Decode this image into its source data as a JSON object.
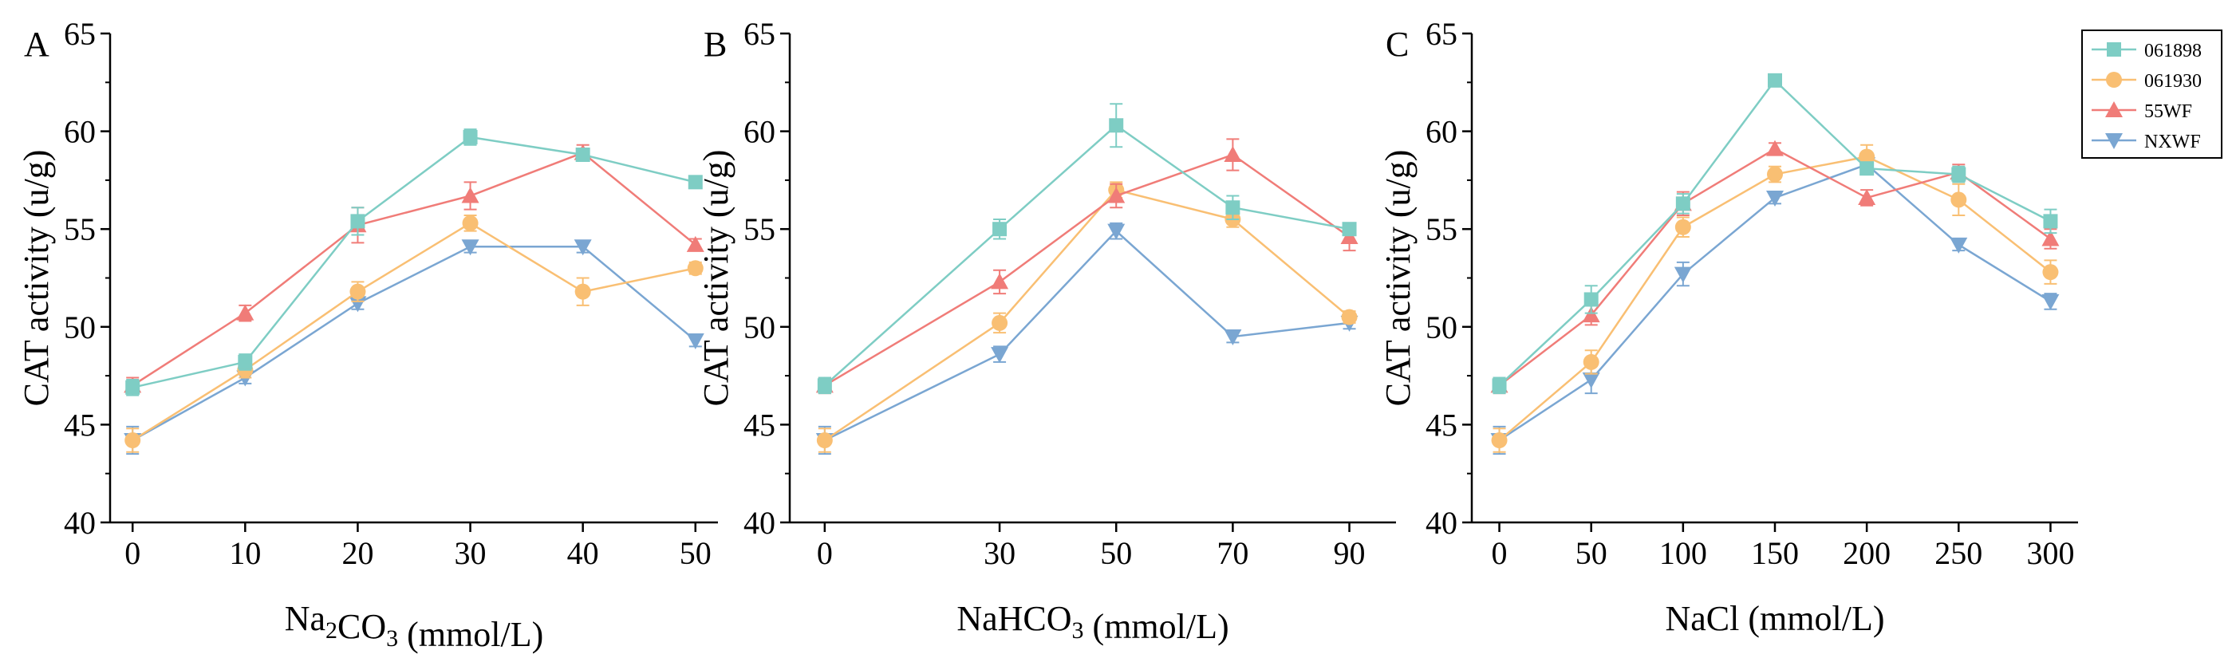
{
  "legend": [
    {
      "name": "061898",
      "color": "#7ecdc4",
      "marker": "square"
    },
    {
      "name": "061930",
      "color": "#f9bf73",
      "marker": "circle"
    },
    {
      "name": "55WF",
      "color": "#f07c78",
      "marker": "triangle-up"
    },
    {
      "name": "NXWF",
      "color": "#7aa6d2",
      "marker": "triangle-down"
    }
  ],
  "chart_data": [
    {
      "type": "line",
      "panel_label": "A",
      "ylabel": "CAT activity (u/g)",
      "xlabel": {
        "pre": "Na",
        "sub1": "2",
        "mid": "CO",
        "sub2": "3",
        "post": " (mmol/L)"
      },
      "x": [
        0,
        10,
        20,
        30,
        40,
        50
      ],
      "xlim": [
        -2,
        52
      ],
      "ylim": [
        40,
        65
      ],
      "yticks": [
        40,
        45,
        50,
        55,
        60,
        65
      ],
      "grid": false,
      "legend_position": "top-right",
      "series": [
        {
          "name": "061898",
          "values": [
            46.9,
            48.2,
            55.4,
            59.7,
            58.8,
            57.4
          ],
          "errors": [
            0.4,
            0.4,
            0.7,
            0.4,
            0.3,
            0.3
          ]
        },
        {
          "name": "061930",
          "values": [
            44.2,
            47.8,
            51.8,
            55.3,
            51.8,
            53.0
          ],
          "errors": [
            0.6,
            0.4,
            0.5,
            0.4,
            0.7,
            0.3
          ]
        },
        {
          "name": "55WF",
          "values": [
            47.0,
            50.7,
            55.2,
            56.7,
            58.9,
            54.2
          ],
          "errors": [
            0.4,
            0.4,
            0.9,
            0.7,
            0.4,
            0.3
          ]
        },
        {
          "name": "NXWF",
          "values": [
            44.2,
            47.4,
            51.2,
            54.1,
            54.1,
            49.3
          ],
          "errors": [
            0.7,
            0.3,
            0.3,
            0.3,
            0.3,
            0.3
          ]
        }
      ]
    },
    {
      "type": "line",
      "panel_label": "B",
      "ylabel": "CAT activity (u/g)",
      "xlabel": {
        "pre": "NaHCO",
        "sub1": "",
        "mid": "",
        "sub2": "3",
        "post": " (mmol/L)"
      },
      "x": [
        0,
        30,
        50,
        70,
        90
      ],
      "xlim": [
        -6,
        98
      ],
      "ylim": [
        40,
        65
      ],
      "yticks": [
        40,
        45,
        50,
        55,
        60,
        65
      ],
      "grid": false,
      "series": [
        {
          "name": "061898",
          "values": [
            47.0,
            55.0,
            60.3,
            56.1,
            55.0
          ],
          "errors": [
            0.4,
            0.5,
            1.1,
            0.6,
            0.3
          ]
        },
        {
          "name": "061930",
          "values": [
            44.2,
            50.2,
            57.0,
            55.5,
            50.5
          ],
          "errors": [
            0.6,
            0.5,
            0.4,
            0.4,
            0.3
          ]
        },
        {
          "name": "55WF",
          "values": [
            47.0,
            52.3,
            56.7,
            58.8,
            54.6
          ],
          "errors": [
            0.4,
            0.6,
            0.6,
            0.8,
            0.7
          ]
        },
        {
          "name": "NXWF",
          "values": [
            44.2,
            48.6,
            54.9,
            49.5,
            50.2
          ],
          "errors": [
            0.7,
            0.4,
            0.4,
            0.3,
            0.3
          ]
        }
      ]
    },
    {
      "type": "line",
      "panel_label": "C",
      "ylabel": "CAT activity (u/g)",
      "xlabel": {
        "pre": "NaCl",
        "sub1": "",
        "mid": "",
        "sub2": "",
        "post": " (mmol/L)"
      },
      "x": [
        0,
        50,
        100,
        150,
        200,
        250,
        300
      ],
      "xlim": [
        -15,
        315
      ],
      "ylim": [
        40,
        65
      ],
      "yticks": [
        40,
        45,
        50,
        55,
        60,
        65
      ],
      "grid": false,
      "series": [
        {
          "name": "061898",
          "values": [
            47.0,
            51.4,
            56.3,
            62.6,
            58.1,
            57.8,
            55.4
          ],
          "errors": [
            0.4,
            0.7,
            0.5,
            0.3,
            0.3,
            0.4,
            0.6
          ]
        },
        {
          "name": "061930",
          "values": [
            44.2,
            48.2,
            55.1,
            57.8,
            58.7,
            56.5,
            52.8
          ],
          "errors": [
            0.6,
            0.6,
            0.5,
            0.4,
            0.6,
            0.8,
            0.6
          ]
        },
        {
          "name": "55WF",
          "values": [
            47.0,
            50.6,
            56.3,
            59.1,
            56.6,
            57.9,
            54.5
          ],
          "errors": [
            0.4,
            0.5,
            0.6,
            0.3,
            0.4,
            0.4,
            0.5
          ]
        },
        {
          "name": "NXWF",
          "values": [
            44.2,
            47.3,
            52.7,
            56.6,
            58.3,
            54.2,
            51.3
          ],
          "errors": [
            0.7,
            0.7,
            0.6,
            0.3,
            0.4,
            0.3,
            0.4
          ]
        }
      ]
    }
  ]
}
